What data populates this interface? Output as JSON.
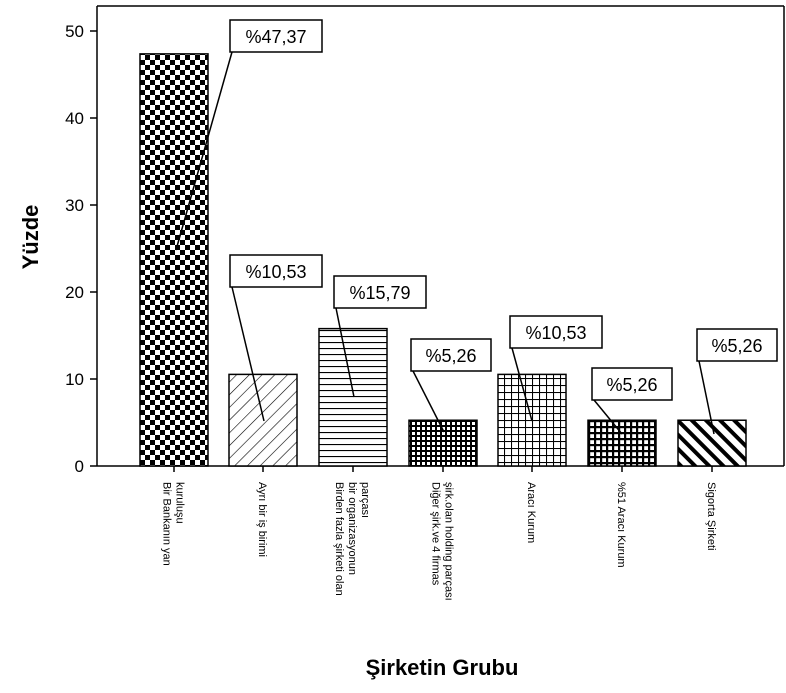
{
  "chart_data": {
    "type": "bar",
    "xlabel": "Şirketin Grubu",
    "ylabel": "Yüzde",
    "ylim": [
      0,
      52
    ],
    "yticks": [
      0,
      10,
      20,
      30,
      40,
      50
    ],
    "grid": false,
    "categories": [
      [
        "Bir Bankanın yan",
        "kuruluşu"
      ],
      [
        "Ayrı bir iş birimi"
      ],
      [
        "Birden fazla şirketi olan",
        "bir organizasyonun",
        "parçası"
      ],
      [
        "Diğer şirk.ve 4 firmas",
        "şirk.olan holding parçası"
      ],
      [
        "Aracı Kurum"
      ],
      [
        "%51 Aracı Kurum"
      ],
      [
        "Sigorta Şirketi"
      ]
    ],
    "values": [
      47.37,
      10.53,
      15.79,
      5.26,
      10.53,
      5.26,
      5.26
    ],
    "data_labels": [
      "%47,37",
      "%10,53",
      "%15,79",
      "%5,26",
      "%10,53",
      "%5,26",
      "%5,26"
    ],
    "patterns": [
      "checkerboard",
      "diagonal-light",
      "horizontal-lines",
      "small-grid-dense",
      "grid",
      "dense-grid",
      "diagonal-bold"
    ]
  }
}
